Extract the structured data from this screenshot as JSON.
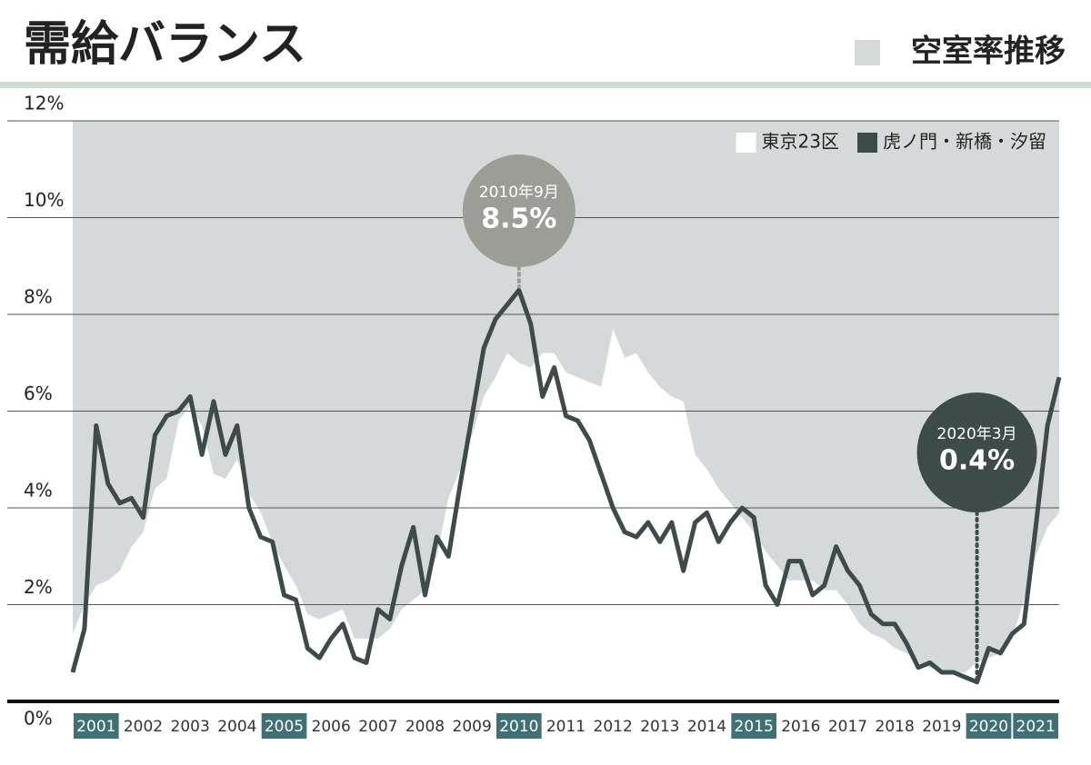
{
  "chart_data": {
    "type": "line",
    "title": "需給バランス",
    "subtitle": "空室率推移",
    "x": [
      2001,
      2001.25,
      2001.5,
      2001.75,
      2002,
      2002.25,
      2002.5,
      2002.75,
      2003,
      2003.25,
      2003.5,
      2003.75,
      2004,
      2004.25,
      2004.5,
      2004.75,
      2005,
      2005.25,
      2005.5,
      2005.75,
      2006,
      2006.25,
      2006.5,
      2006.75,
      2007,
      2007.25,
      2007.5,
      2007.75,
      2008,
      2008.25,
      2008.5,
      2008.75,
      2009,
      2009.25,
      2009.5,
      2009.75,
      2010,
      2010.25,
      2010.5,
      2010.75,
      2011,
      2011.25,
      2011.5,
      2011.75,
      2012,
      2012.25,
      2012.5,
      2012.75,
      2013,
      2013.25,
      2013.5,
      2013.75,
      2014,
      2014.25,
      2014.5,
      2014.75,
      2015,
      2015.25,
      2015.5,
      2015.75,
      2016,
      2016.25,
      2016.5,
      2016.75,
      2017,
      2017.25,
      2017.5,
      2017.75,
      2018,
      2018.25,
      2018.5,
      2018.75,
      2019,
      2019.25,
      2019.5,
      2019.75,
      2020,
      2020.25,
      2020.5,
      2020.75,
      2021,
      2021.25,
      2021.5,
      2021.75,
      2022
    ],
    "series": [
      {
        "name": "東京23区",
        "color": "#ffffff",
        "type": "area",
        "values": [
          1.4,
          2.0,
          2.4,
          2.5,
          2.7,
          3.2,
          3.5,
          4.4,
          4.6,
          5.8,
          6.1,
          5.7,
          4.7,
          4.6,
          5.0,
          4.3,
          3.9,
          3.3,
          2.8,
          2.4,
          1.8,
          1.7,
          1.8,
          1.9,
          1.3,
          1.3,
          1.3,
          1.5,
          1.9,
          2.1,
          2.3,
          3.0,
          4.2,
          4.8,
          5.5,
          6.3,
          6.7,
          7.2,
          7.0,
          6.9,
          7.2,
          7.2,
          6.8,
          6.7,
          6.6,
          6.5,
          7.7,
          7.1,
          7.2,
          6.8,
          6.5,
          6.3,
          6.2,
          5.1,
          4.8,
          4.4,
          4.1,
          3.8,
          3.5,
          3.1,
          2.8,
          2.5,
          2.5,
          2.5,
          2.3,
          2.3,
          2.0,
          1.6,
          1.4,
          1.3,
          1.1,
          1.0,
          0.8,
          0.7,
          0.6,
          0.6,
          0.6,
          0.8,
          0.9,
          1.0,
          1.3,
          2.1,
          3.0,
          3.6,
          3.9
        ]
      },
      {
        "name": "虎ノ門・新橋・汐留",
        "color": "#3d4b4b",
        "type": "line",
        "values": [
          0.6,
          1.5,
          5.7,
          4.5,
          4.1,
          4.2,
          3.8,
          5.5,
          5.9,
          6.0,
          6.3,
          5.1,
          6.2,
          5.1,
          5.7,
          4.0,
          3.4,
          3.3,
          2.2,
          2.1,
          1.1,
          0.9,
          1.3,
          1.6,
          0.9,
          0.8,
          1.9,
          1.7,
          2.8,
          3.6,
          2.2,
          3.4,
          3.0,
          4.5,
          5.9,
          7.3,
          7.9,
          8.2,
          8.5,
          7.8,
          6.3,
          6.9,
          5.9,
          5.8,
          5.4,
          4.7,
          4.0,
          3.5,
          3.4,
          3.7,
          3.3,
          3.7,
          2.7,
          3.7,
          3.9,
          3.3,
          3.7,
          4.0,
          3.8,
          2.4,
          2.0,
          2.9,
          2.9,
          2.2,
          2.4,
          3.2,
          2.7,
          2.4,
          1.8,
          1.6,
          1.6,
          1.2,
          0.7,
          0.8,
          0.6,
          0.6,
          0.5,
          0.4,
          1.1,
          1.0,
          1.4,
          1.6,
          3.6,
          5.7,
          6.7
        ]
      }
    ],
    "xlim": [
      2001,
      2022
    ],
    "xticks": [
      2001,
      2002,
      2003,
      2004,
      2005,
      2006,
      2007,
      2008,
      2009,
      2010,
      2011,
      2012,
      2013,
      2014,
      2015,
      2016,
      2017,
      2018,
      2019,
      2020,
      2021
    ],
    "xtick_highlight": [
      2001,
      2005,
      2010,
      2015,
      2020,
      2021
    ],
    "ylim": [
      0,
      12
    ],
    "yticks": [
      {
        "value": 0,
        "label": "0%"
      },
      {
        "value": 2,
        "label": "2%"
      },
      {
        "value": 4,
        "label": "4%"
      },
      {
        "value": 6,
        "label": "6%"
      },
      {
        "value": 8,
        "label": "8%"
      },
      {
        "value": 10,
        "label": "10%"
      },
      {
        "value": 12,
        "label": "12%"
      }
    ],
    "grid": true,
    "legend": "upper right",
    "background": "#d5d9d9",
    "annotations": [
      {
        "x": 2010.5,
        "y": 8.5,
        "date": "2010年9月",
        "label": "8.5%",
        "color": "#9d9d97"
      },
      {
        "x": 2020.25,
        "y": 0.4,
        "date": "2020年3月",
        "label": "0.4%",
        "color": "#3d4b4b"
      }
    ]
  }
}
